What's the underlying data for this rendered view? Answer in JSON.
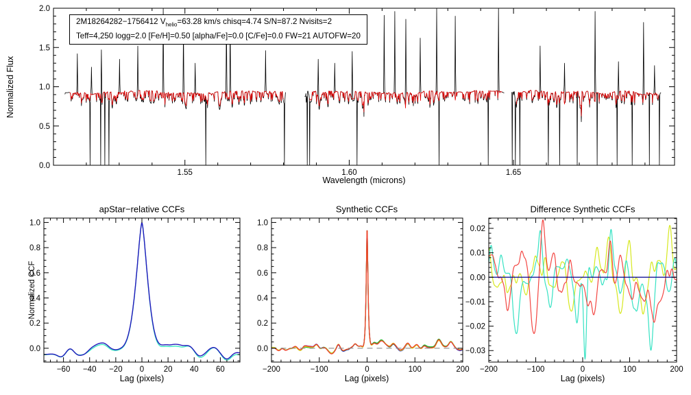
{
  "figure_name": "apStar spectrum and CCF summary plot",
  "chart_data": [
    {
      "id": "spectrum",
      "type": "line",
      "title": "",
      "xlabel": "Wavelength (microns)",
      "ylabel": "Normalized Flux",
      "xlim": [
        1.51,
        1.699
      ],
      "ylim": [
        0.0,
        2.0
      ],
      "xticks": {
        "values": [
          1.55,
          1.6,
          1.65
        ],
        "labels": [
          "1.55",
          "1.60",
          "1.65"
        ],
        "minor_step": 0.01
      },
      "yticks": {
        "values": [
          0.0,
          0.5,
          1.0,
          1.5,
          2.0
        ],
        "labels": [
          "0.0",
          "0.5",
          "1.0",
          "1.5",
          "2.0"
        ],
        "minor_step": 0.1
      },
      "annotation": {
        "line1_pre": "2M18264282−1756412  V",
        "line1_sub": "helio",
        "line1_post": "=63.28 km/s  chisq=4.74  S/N=87.2  Nvisits=2",
        "line2": "Teff=4,250 logg=2.0 [Fe/H]=0.50 [alpha/Fe]=0.0 [C/Fe]=0.0 FW=21 AUTOFW=20"
      },
      "params": {
        "vhelio_kms": 63.28,
        "chisq": 4.74,
        "snr": 87.2,
        "nvisits": 2,
        "teff": 4250,
        "logg": 2.0,
        "feh": 0.5,
        "alpha_fe": 0.0,
        "c_fe": 0.0,
        "fw": 21,
        "autofw": 20
      },
      "continuum_level": 0.93,
      "segments": [
        [
          1.5135,
          1.5806
        ],
        [
          1.5865,
          1.6471
        ],
        [
          1.6494,
          1.6948
        ]
      ],
      "emission_spikes": [
        [
          1.5173,
          1.42
        ],
        [
          1.5216,
          1.25
        ],
        [
          1.5246,
          1.47
        ],
        [
          1.5301,
          1.35
        ],
        [
          1.5357,
          1.52
        ],
        [
          1.5434,
          2.0
        ],
        [
          1.5496,
          1.77
        ],
        [
          1.5531,
          1.3
        ],
        [
          1.5626,
          1.92
        ],
        [
          1.5638,
          1.86
        ],
        [
          1.5745,
          1.46
        ],
        [
          1.5906,
          1.35
        ],
        [
          1.5956,
          1.3
        ],
        [
          1.6009,
          1.45
        ],
        [
          1.6106,
          1.91
        ],
        [
          1.6139,
          1.96
        ],
        [
          1.6172,
          1.86
        ],
        [
          1.6216,
          1.62
        ],
        [
          1.6266,
          2.0
        ],
        [
          1.6323,
          1.9
        ],
        [
          1.6454,
          2.0
        ],
        [
          1.6581,
          1.52
        ],
        [
          1.6655,
          1.3
        ],
        [
          1.6748,
          1.96
        ],
        [
          1.6819,
          1.32
        ],
        [
          1.6896,
          1.82
        ],
        [
          1.6929,
          1.27
        ]
      ],
      "zero_drops": [
        1.5211,
        1.5244,
        1.5256,
        1.5269,
        1.5563,
        1.5803,
        1.5872,
        1.588,
        1.6024,
        1.6274,
        1.6423,
        1.6496,
        1.6506,
        1.6519,
        1.6606,
        1.664,
        1.6694,
        1.6754,
        1.6815,
        1.6861,
        1.6913,
        1.6944
      ],
      "series": [
        {
          "name": "apStar observed spectrum",
          "color": "#000000",
          "seed": 11
        },
        {
          "name": "best-fit synthetic spectrum",
          "color": "#e80000",
          "seed": 11
        }
      ]
    },
    {
      "id": "p1",
      "type": "line",
      "title": "apStar−relative CCFs",
      "xlabel": "Lag (pixels)",
      "ylabel": "Normalized CCF",
      "xlim": [
        -75,
        75
      ],
      "ylim": [
        -0.11,
        1.035
      ],
      "xticks": {
        "values": [
          -60,
          -40,
          -20,
          0,
          20,
          40,
          60
        ],
        "labels": [
          "−60",
          "−40",
          "−20",
          "0",
          "20",
          "40",
          "60"
        ],
        "minor_step": 5
      },
      "yticks": {
        "values": [
          0.0,
          0.2,
          0.4,
          0.6,
          0.8,
          1.0
        ],
        "labels": [
          "0.0",
          "0.2",
          "0.4",
          "0.6",
          "0.8",
          "1.0"
        ],
        "minor_step": 0.05
      },
      "peak": {
        "center": 0,
        "height": 1.0,
        "width": 6.5,
        "power": 1.5
      },
      "background": {
        "base": -0.045,
        "noise": [
          {
            "cells": 20,
            "amp": 0.02
          }
        ],
        "seed": 21,
        "features": [
          [
            -62,
            -0.02,
            3
          ],
          [
            -55,
            0.05,
            3
          ],
          [
            -47,
            -0.012,
            4
          ],
          [
            -30,
            0.075,
            7
          ],
          [
            -15,
            0.02,
            4
          ],
          [
            18,
            0.02,
            3
          ],
          [
            28,
            0.09,
            8
          ],
          [
            43,
            -0.018,
            3
          ],
          [
            55,
            0.05,
            4
          ],
          [
            63,
            -0.04,
            4
          ],
          [
            70,
            0.02,
            3
          ]
        ]
      },
      "series": [
        {
          "name": "visit 2 CCF",
          "color": "#3ce9c2",
          "seed": 25,
          "delta_amp": 0.012,
          "offset": -0.006,
          "width": 1.4
        },
        {
          "name": "visit 1 CCF",
          "color": "#2318bc",
          "seed": 24,
          "delta_amp": 0.004,
          "offset": 0.0,
          "width": 1.4
        }
      ]
    },
    {
      "id": "p2",
      "type": "line",
      "title": "Synthetic CCFs",
      "xlabel": "Lag (pixels)",
      "ylabel": "",
      "xlim": [
        -200,
        200
      ],
      "ylim": [
        -0.11,
        1.035
      ],
      "xticks": {
        "values": [
          -200,
          -100,
          0,
          100,
          200
        ],
        "labels": [
          "−200",
          "−100",
          "0",
          "100",
          "200"
        ],
        "minor_step": 20
      },
      "yticks": {
        "values": [
          0.0,
          0.2,
          0.4,
          0.6,
          0.8,
          1.0
        ],
        "labels": [
          "0.0",
          "0.2",
          "0.4",
          "0.6",
          "0.8",
          "1.0"
        ],
        "minor_step": 0.05
      },
      "peak": {
        "center": 0,
        "height": 1.0,
        "width": 2.6,
        "power": 1.3
      },
      "background": {
        "base": 0.0,
        "noise": [
          {
            "cells": 40,
            "amp": 0.018
          }
        ],
        "seed": 31,
        "features": [
          [
            -185,
            -0.028,
            5
          ],
          [
            -150,
            0.018,
            4
          ],
          [
            -105,
            0.03,
            4
          ],
          [
            -75,
            -0.042,
            6
          ],
          [
            -60,
            0.025,
            3
          ],
          [
            -40,
            -0.015,
            4
          ],
          [
            -25,
            0.022,
            3
          ],
          [
            -12,
            0.02,
            3
          ],
          [
            15,
            0.028,
            4
          ],
          [
            30,
            0.05,
            6
          ],
          [
            55,
            0.03,
            4
          ],
          [
            85,
            0.05,
            5
          ],
          [
            105,
            0.028,
            4
          ],
          [
            120,
            0.03,
            4
          ],
          [
            150,
            0.05,
            5
          ],
          [
            175,
            0.04,
            4
          ],
          [
            195,
            -0.01,
            4
          ]
        ]
      },
      "zero_line": {
        "style": "dashed",
        "color": "#8c8c8c",
        "width": 1.2
      },
      "series": [
        {
          "name": "synthetic CCF blue",
          "color": "#1a1ad0",
          "seed": 32,
          "delta_amp": 0.007,
          "offset": 0.0,
          "width": 1.3
        },
        {
          "name": "synthetic CCF green",
          "color": "#22b422",
          "seed": 33,
          "delta_amp": 0.007,
          "offset": 0.0,
          "width": 1.3
        },
        {
          "name": "synthetic CCF yellow",
          "color": "#d8d820",
          "seed": 34,
          "delta_amp": 0.006,
          "offset": 0.0,
          "width": 1.3
        },
        {
          "name": "synthetic CCF red",
          "color": "#ef3b2d",
          "seed": 35,
          "delta_amp": 0.005,
          "offset": 0.0,
          "width": 1.3
        }
      ]
    },
    {
      "id": "p3",
      "type": "line",
      "title": "Difference Synthetic CCFs",
      "xlabel": "Lag (pixels)",
      "ylabel": "",
      "xlim": [
        -200,
        200
      ],
      "ylim": [
        -0.0347,
        0.0242
      ],
      "xticks": {
        "values": [
          -200,
          -100,
          0,
          100,
          200
        ],
        "labels": [
          "−200",
          "−100",
          "0",
          "100",
          "200"
        ],
        "minor_step": 20
      },
      "yticks": {
        "values": [
          0.02,
          0.01,
          0.0,
          -0.01,
          -0.02,
          -0.03
        ],
        "labels": [
          "0.02",
          "0.01",
          "0.00",
          "−0.01",
          "−0.02",
          "−0.03"
        ],
        "minor_step": 0.002
      },
      "zero_line": {
        "style": "solid",
        "color": "#00008b",
        "width": 1.3
      },
      "background": {
        "base": 0.0,
        "noise": [],
        "seed": 0,
        "features": []
      },
      "series": [
        {
          "name": "difference CCF yellow",
          "color": "#d6e81e",
          "seed": 43,
          "width": 1.2,
          "noise": [
            {
              "cells": 30,
              "amp": 0.006
            },
            {
              "cells": 60,
              "amp": 0.003
            }
          ],
          "features": [
            [
              -200,
              0.006,
              5
            ],
            [
              -150,
              0.004,
              6
            ],
            [
              -105,
              0.012,
              5
            ],
            [
              -80,
              0.011,
              4
            ],
            [
              -55,
              -0.007,
              5
            ],
            [
              -25,
              -0.009,
              6
            ],
            [
              0,
              0.004,
              5
            ],
            [
              30,
              0.01,
              4
            ],
            [
              55,
              0.012,
              4
            ],
            [
              80,
              -0.011,
              5
            ],
            [
              100,
              0.011,
              4
            ],
            [
              130,
              -0.013,
              6
            ],
            [
              160,
              0.004,
              5
            ],
            [
              185,
              0.016,
              5
            ],
            [
              200,
              0.008,
              4
            ]
          ]
        },
        {
          "name": "difference CCF turquoise",
          "color": "#35e2c3",
          "seed": 42,
          "width": 1.2,
          "noise": [
            {
              "cells": 30,
              "amp": 0.006
            },
            {
              "cells": 60,
              "amp": 0.003
            }
          ],
          "features": [
            [
              -195,
              0.012,
              4
            ],
            [
              -175,
              0.005,
              5
            ],
            [
              -140,
              -0.019,
              6
            ],
            [
              -90,
              0.016,
              4
            ],
            [
              -70,
              -0.011,
              5
            ],
            [
              -30,
              0.006,
              5
            ],
            [
              -12,
              -0.014,
              4
            ],
            [
              5,
              -0.033,
              3
            ],
            [
              35,
              0.007,
              5
            ],
            [
              60,
              0.016,
              4
            ],
            [
              90,
              0.004,
              5
            ],
            [
              115,
              -0.012,
              5
            ],
            [
              145,
              -0.026,
              5
            ],
            [
              170,
              0.004,
              4
            ],
            [
              195,
              0.012,
              4
            ]
          ]
        },
        {
          "name": "difference CCF red",
          "color": "#f34541",
          "seed": 41,
          "width": 1.2,
          "noise": [
            {
              "cells": 30,
              "amp": 0.006
            },
            {
              "cells": 60,
              "amp": 0.003
            }
          ],
          "features": [
            [
              -190,
              0.008,
              6
            ],
            [
              -160,
              -0.012,
              7
            ],
            [
              -130,
              0.012,
              5
            ],
            [
              -105,
              -0.021,
              6
            ],
            [
              -85,
              0.022,
              5
            ],
            [
              -60,
              0.01,
              4
            ],
            [
              -45,
              -0.006,
              5
            ],
            [
              10,
              -0.008,
              4
            ],
            [
              25,
              -0.019,
              5
            ],
            [
              58,
              0.017,
              5
            ],
            [
              80,
              0.008,
              4
            ],
            [
              105,
              -0.006,
              5
            ],
            [
              130,
              -0.008,
              6
            ],
            [
              150,
              -0.013,
              6
            ],
            [
              170,
              -0.008,
              5
            ],
            [
              190,
              0.01,
              5
            ]
          ]
        }
      ]
    }
  ]
}
